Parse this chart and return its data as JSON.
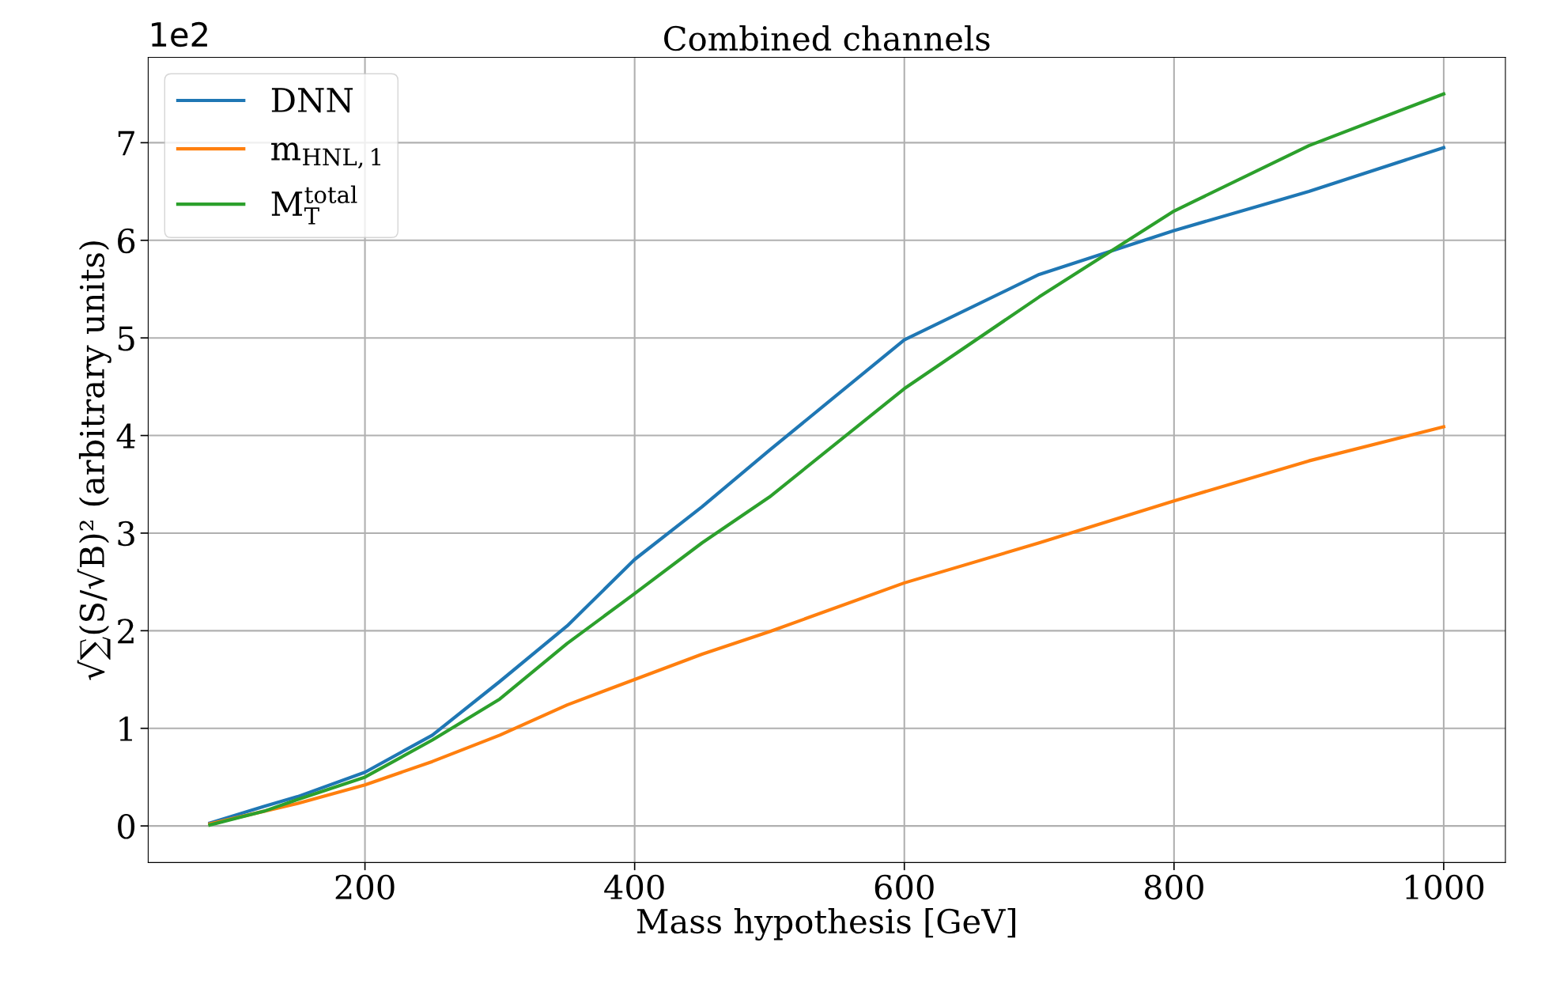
{
  "chart_data": {
    "type": "line",
    "title": "Combined channels",
    "xlabel": "Mass hypothesis [GeV]",
    "ylabel": "√∑(S/√B)² (arbitrary units)",
    "x": [
      85,
      125,
      150,
      200,
      250,
      300,
      350,
      400,
      450,
      500,
      600,
      700,
      800,
      900,
      1000
    ],
    "series": [
      {
        "name": "DNN",
        "color": "#1f77b4",
        "values": [
          0.03,
          0.2,
          0.3,
          0.55,
          0.93,
          1.48,
          2.05,
          2.73,
          3.27,
          3.85,
          4.98,
          5.65,
          6.1,
          6.5,
          6.95
        ]
      },
      {
        "name": "m$_{HNL,1}$",
        "color": "#ff7f0e",
        "values": [
          0.02,
          0.15,
          0.23,
          0.42,
          0.66,
          0.93,
          1.24,
          1.5,
          1.76,
          1.99,
          2.49,
          2.9,
          3.33,
          3.74,
          4.09
        ]
      },
      {
        "name": "M$^{total}$$_{T}$",
        "color": "#2ca02c",
        "values": [
          0.01,
          0.15,
          0.27,
          0.5,
          0.88,
          1.3,
          1.87,
          2.38,
          2.9,
          3.37,
          4.48,
          5.42,
          6.3,
          6.97,
          7.5
        ]
      }
    ],
    "xlim": [
      39.25,
      1045.75
    ],
    "ylim": [
      -0.375,
      7.875
    ],
    "xticks": [
      200,
      400,
      600,
      800,
      1000
    ],
    "yticks": [
      0,
      1,
      2,
      3,
      4,
      5,
      6,
      7
    ],
    "annotations": [
      "1e2"
    ],
    "grid": true,
    "legend": "top left",
    "marker": "none",
    "line_style": "solid"
  }
}
